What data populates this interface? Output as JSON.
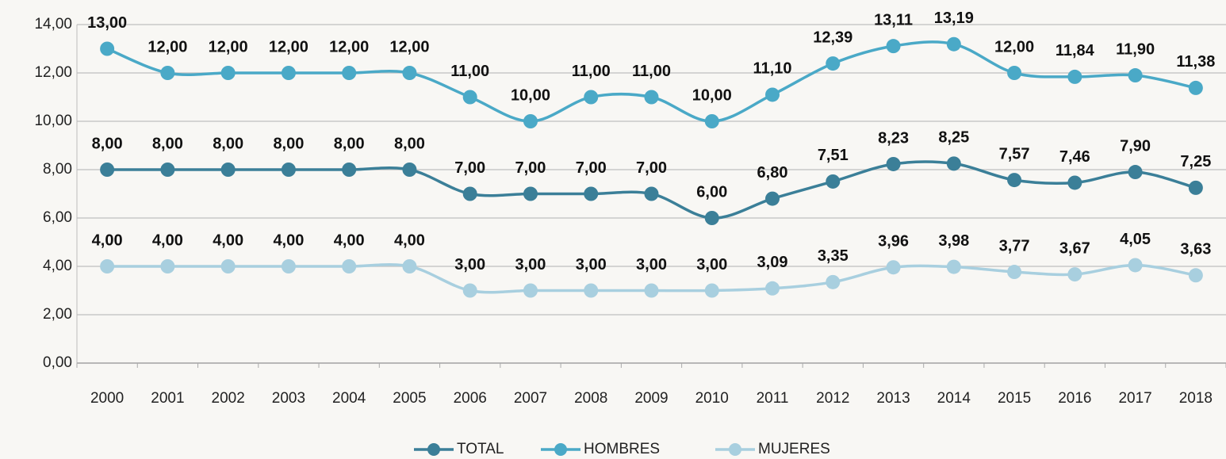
{
  "chart_data": {
    "type": "line",
    "categories": [
      "2000",
      "2001",
      "2002",
      "2003",
      "2004",
      "2005",
      "2006",
      "2007",
      "2008",
      "2009",
      "2010",
      "2011",
      "2012",
      "2013",
      "2014",
      "2015",
      "2016",
      "2017",
      "2018"
    ],
    "series": [
      {
        "name": "TOTAL",
        "color": "#3b7f98",
        "values": [
          8,
          8,
          8,
          8,
          8,
          8,
          7,
          7,
          7,
          7,
          6,
          6.8,
          7.51,
          8.23,
          8.25,
          7.57,
          7.46,
          7.9,
          7.25
        ],
        "value_labels": [
          "8,00",
          "8,00",
          "8,00",
          "8,00",
          "8,00",
          "8,00",
          "7,00",
          "7,00",
          "7,00",
          "7,00",
          "6,00",
          "6,80",
          "7,51",
          "8,23",
          "8,25",
          "7,57",
          "7,46",
          "7,90",
          "7,25"
        ]
      },
      {
        "name": "HOMBRES",
        "color": "#4aa9c7",
        "values": [
          13,
          12,
          12,
          12,
          12,
          12,
          11,
          10,
          11,
          11,
          10,
          11.1,
          12.39,
          13.11,
          13.19,
          12,
          11.84,
          11.9,
          11.38
        ],
        "value_labels": [
          "13,00",
          "12,00",
          "12,00",
          "12,00",
          "12,00",
          "12,00",
          "11,00",
          "10,00",
          "11,00",
          "11,00",
          "10,00",
          "11,10",
          "12,39",
          "13,11",
          "13,19",
          "12,00",
          "11,84",
          "11,90",
          "11,38"
        ]
      },
      {
        "name": "MUJERES",
        "color": "#a8cfdf",
        "values": [
          4,
          4,
          4,
          4,
          4,
          4,
          3,
          3,
          3,
          3,
          3,
          3.09,
          3.35,
          3.96,
          3.98,
          3.77,
          3.67,
          4.05,
          3.63
        ],
        "value_labels": [
          "4,00",
          "4,00",
          "4,00",
          "4,00",
          "4,00",
          "4,00",
          "3,00",
          "3,00",
          "3,00",
          "3,00",
          "3,00",
          "3,09",
          "3,35",
          "3,96",
          "3,98",
          "3,77",
          "3,67",
          "4,05",
          "3,63"
        ]
      }
    ],
    "ylim": [
      0,
      14
    ],
    "yticks": [
      {
        "value": 0,
        "label": "0,00"
      },
      {
        "value": 2,
        "label": "2,00"
      },
      {
        "value": 4,
        "label": "4,00"
      },
      {
        "value": 6,
        "label": "6,00"
      },
      {
        "value": 8,
        "label": "8,00"
      },
      {
        "value": 10,
        "label": "10,00"
      },
      {
        "value": 12,
        "label": "12,00"
      },
      {
        "value": 14,
        "label": "14,00"
      }
    ],
    "grid": true,
    "legend": "bottom"
  }
}
